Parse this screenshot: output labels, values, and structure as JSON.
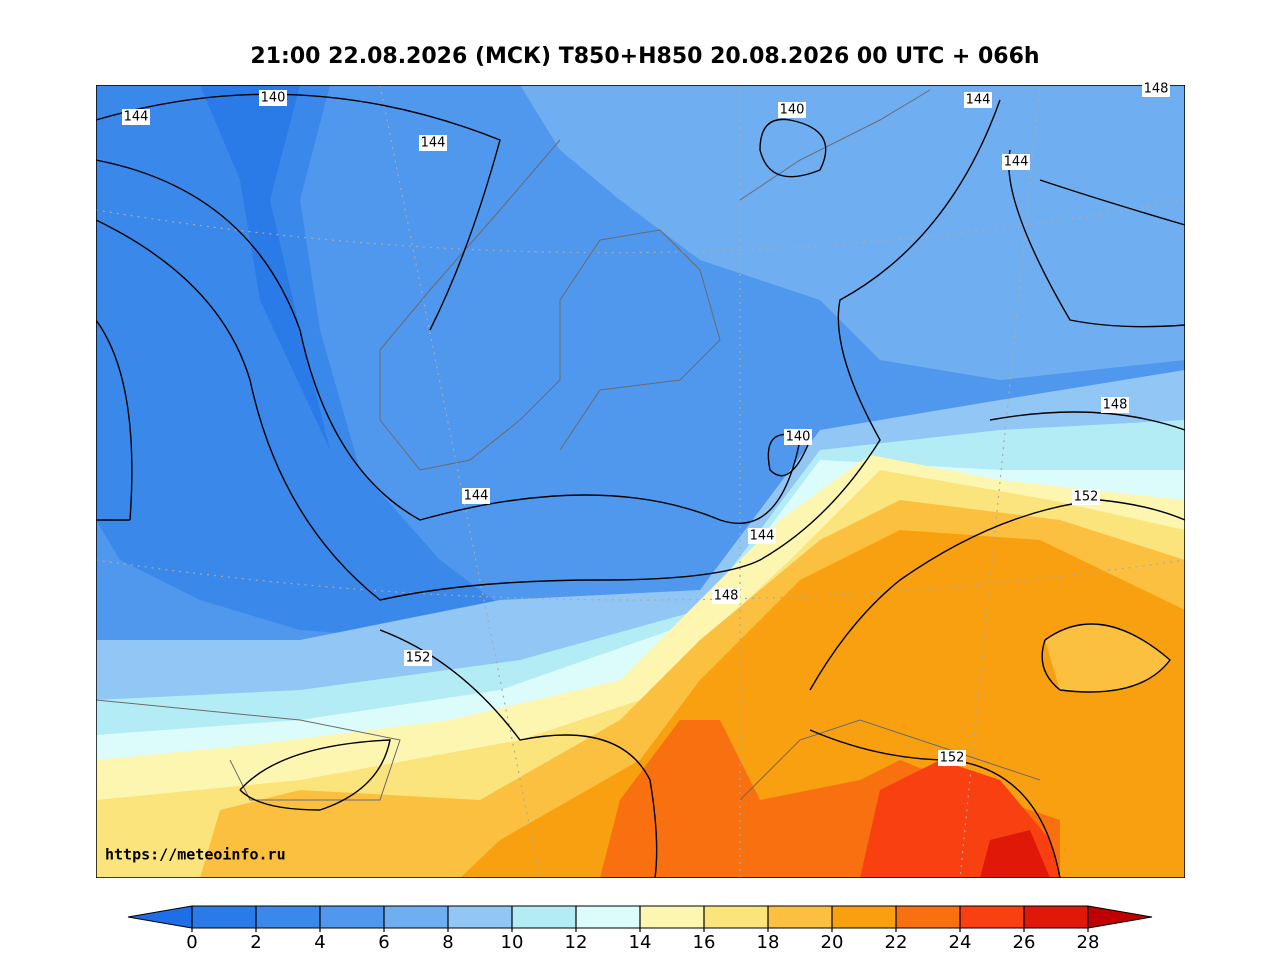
{
  "title": "21:00 22.08.2026 (МСК) T850+H850 20.08.2026 00 UTC + 066h",
  "watermark": "https://meteoinfo.ru",
  "contour_labels": [
    140,
    144,
    144,
    140,
    144,
    148,
    144,
    140,
    148,
    144,
    152,
    144,
    148,
    152,
    152
  ],
  "colorbar": {
    "ticks": [
      0,
      2,
      4,
      6,
      8,
      10,
      12,
      14,
      16,
      18,
      20,
      22,
      24,
      26,
      28
    ],
    "colors": [
      "#1e6ee8",
      "#2a7ae8",
      "#3a88ea",
      "#4f98ee",
      "#70aef2",
      "#92c6f4",
      "#b4ecf6",
      "#dcfcfc",
      "#fcf6b0",
      "#fce47c",
      "#fcc040",
      "#f8a010",
      "#f87010",
      "#f84010",
      "#e01808",
      "#c00000"
    ]
  }
}
